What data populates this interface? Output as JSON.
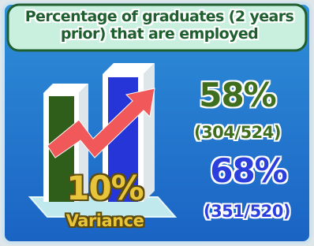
{
  "title": "Percentage of graduates (2 years prior) that are employed",
  "stats": [
    {
      "value": "58%",
      "detail": "(304/524)"
    },
    {
      "value": "68%",
      "detail": "(351/520)"
    }
  ],
  "variance": {
    "value": "10%",
    "label": "Variance"
  }
}
